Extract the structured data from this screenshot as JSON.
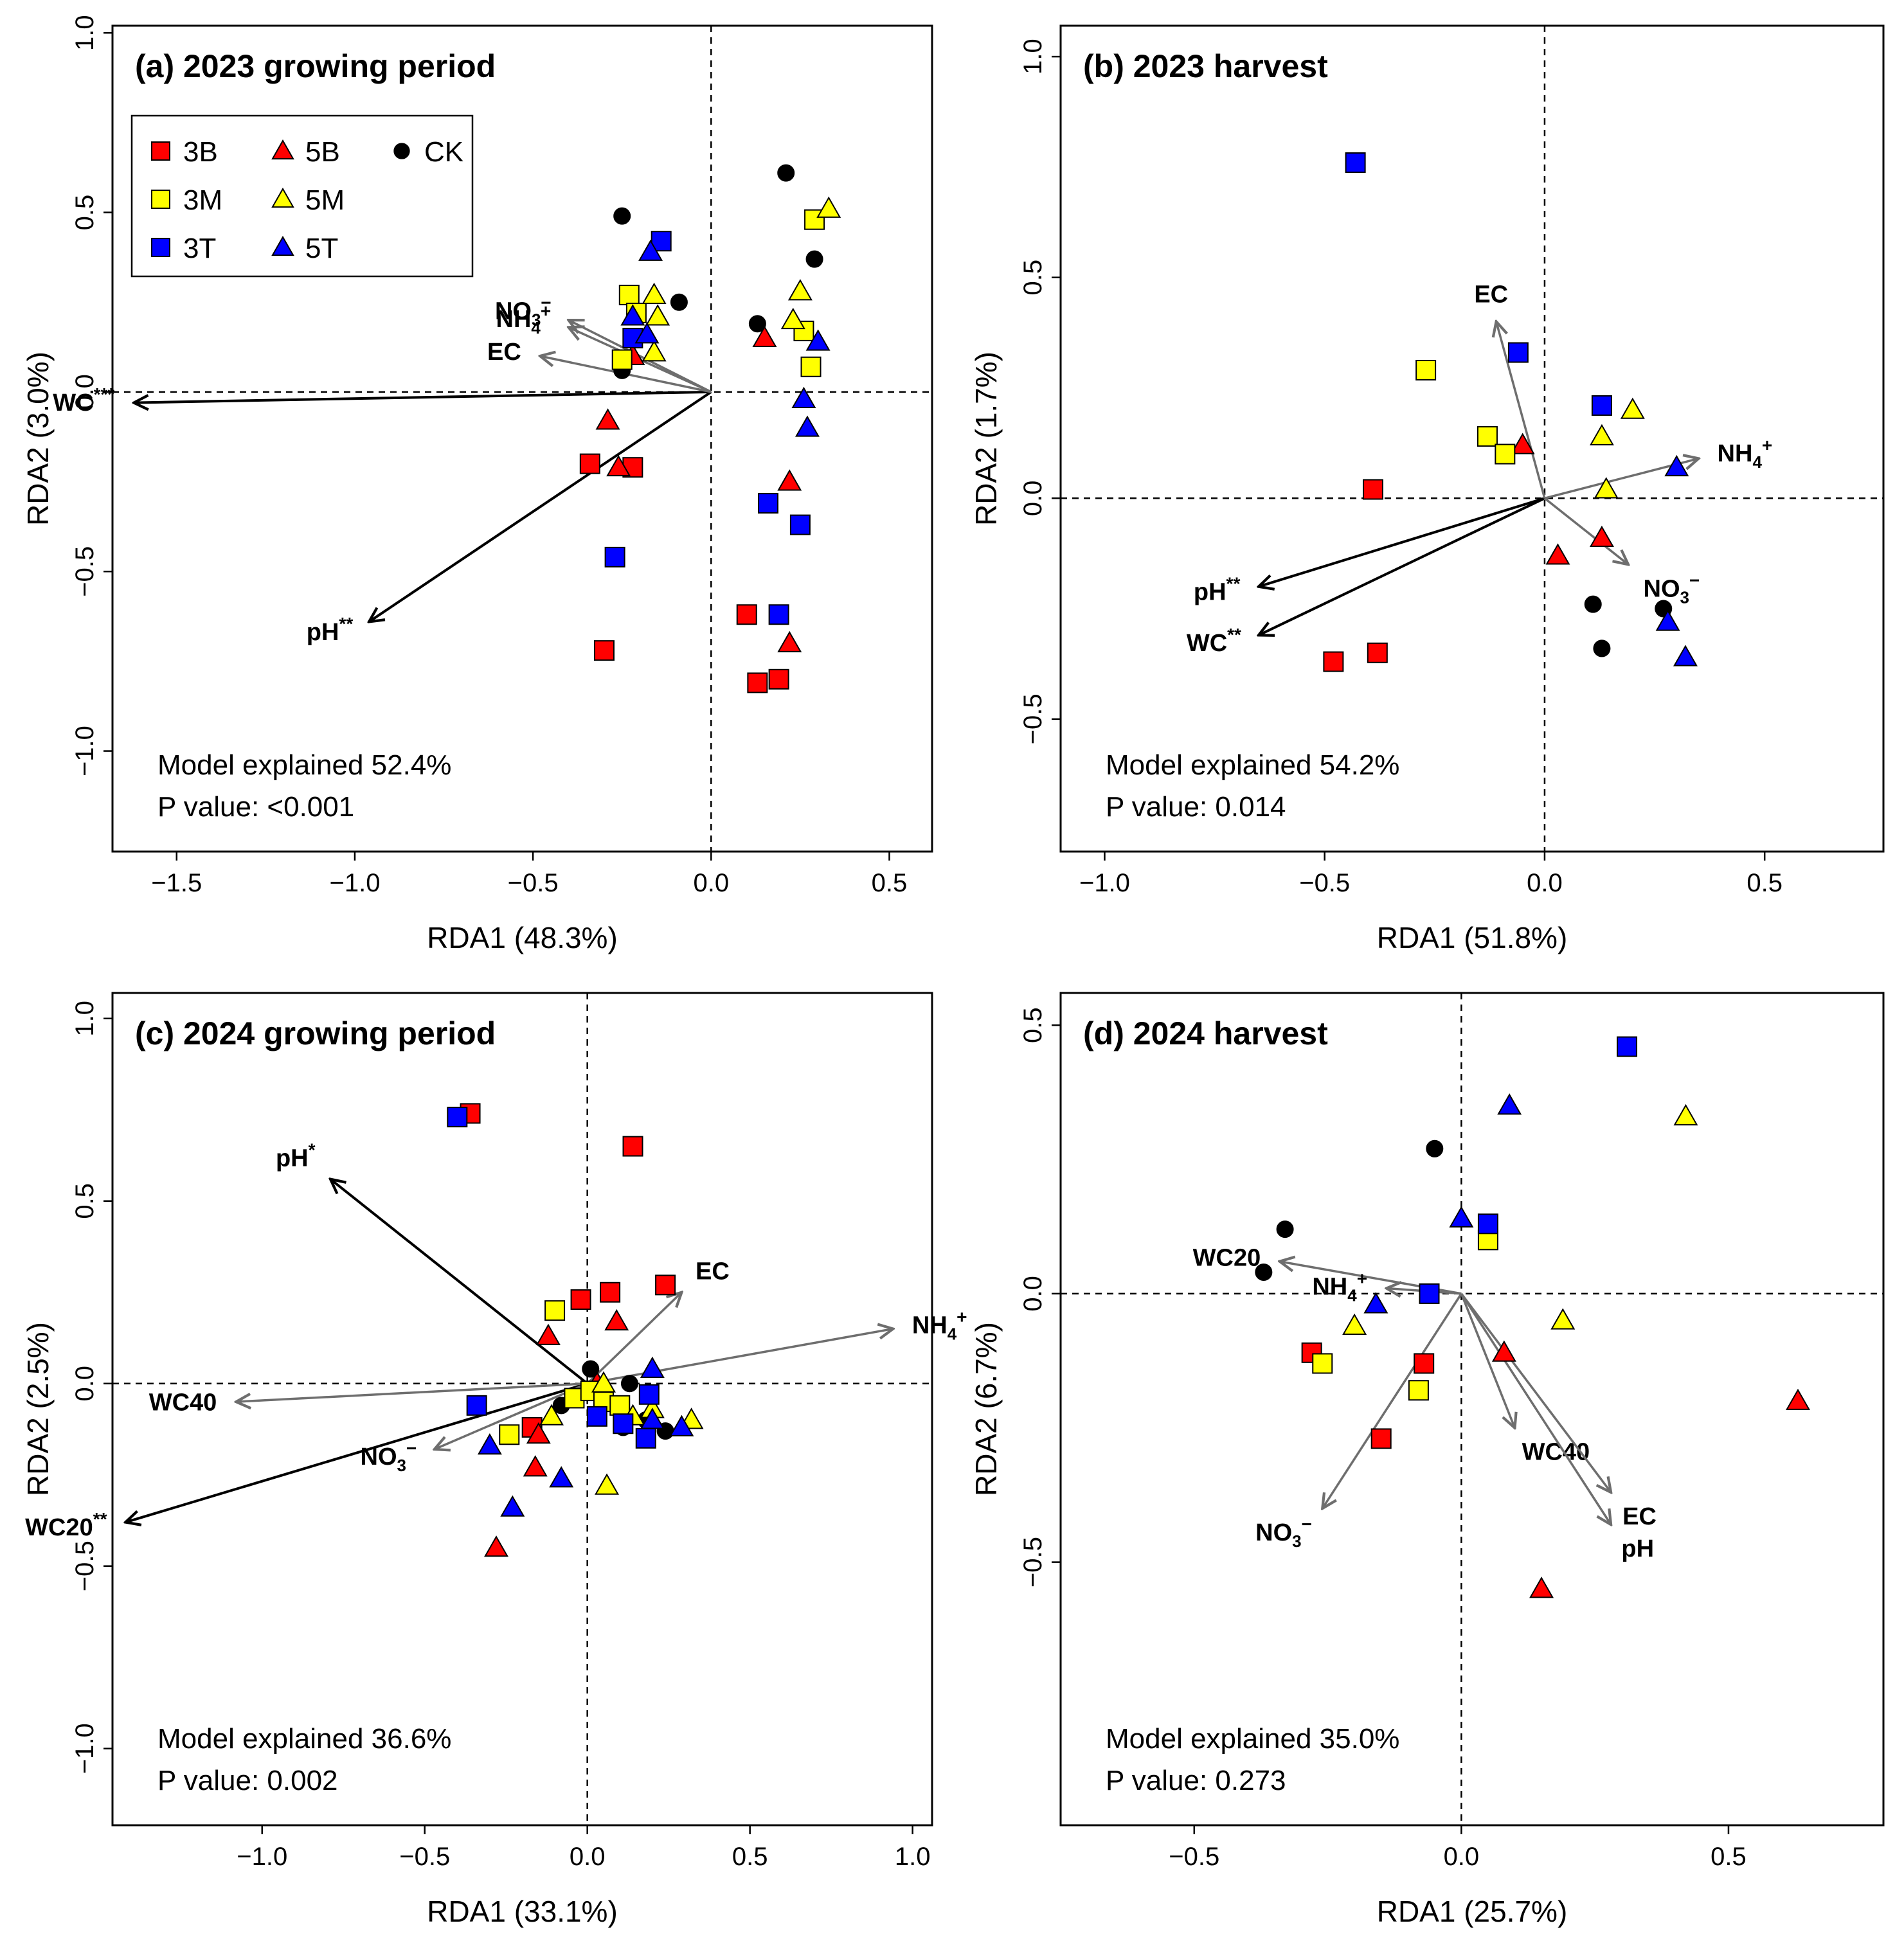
{
  "legend_labels": [
    "3B",
    "5B",
    "CK",
    "3M",
    "5M",
    "3T",
    "5T"
  ],
  "colors": {
    "B": "#ff0000",
    "M": "#ffff00",
    "T": "#0000ff",
    "CK": "#000000",
    "env": "#6e6e6e",
    "sig": "#000000"
  },
  "chart_data": [
    {
      "type": "scatter",
      "title": "(a) 2023 growing period",
      "xlabel": "RDA1 (48.3%)",
      "ylabel": "RDA2 (3.0%)",
      "xlim": [
        -1.68,
        0.62
      ],
      "ylim": [
        -1.28,
        1.02
      ],
      "xticks": [
        -1.5,
        -1.0,
        -0.5,
        0.0,
        0.5
      ],
      "yticks": [
        -1.0,
        -0.5,
        0.0,
        0.5,
        1.0
      ],
      "model_text": "Model explained 52.4%",
      "p_text": "P value: <0.001",
      "legend": "top-left",
      "vectors": [
        {
          "name": "WC",
          "sup": "***",
          "x": -1.62,
          "y": -0.03,
          "sig": true
        },
        {
          "name": "pH",
          "sup": "**",
          "x": -0.96,
          "y": -0.64,
          "sig": true
        },
        {
          "name": "NO3",
          "sup": "−",
          "x": -0.4,
          "y": 0.2,
          "sig": false
        },
        {
          "name": "NH4",
          "sup": "+",
          "x": -0.4,
          "y": 0.18,
          "sig": false
        },
        {
          "name": "EC",
          "sup": "",
          "x": -0.48,
          "y": 0.1,
          "sig": false
        }
      ],
      "series": [
        {
          "group": "3B",
          "points": [
            [
              -0.34,
              -0.2
            ],
            [
              -0.22,
              -0.21
            ],
            [
              -0.3,
              -0.72
            ],
            [
              0.1,
              -0.62
            ],
            [
              0.13,
              -0.81
            ],
            [
              0.19,
              -0.8
            ]
          ]
        },
        {
          "group": "5B",
          "points": [
            [
              -0.29,
              -0.08
            ],
            [
              -0.26,
              -0.21
            ],
            [
              0.15,
              0.15
            ],
            [
              0.22,
              -0.25
            ],
            [
              0.22,
              -0.7
            ],
            [
              -0.22,
              0.1
            ]
          ]
        },
        {
          "group": "CK",
          "points": [
            [
              -0.25,
              0.49
            ],
            [
              -0.09,
              0.25
            ],
            [
              0.21,
              0.61
            ],
            [
              0.29,
              0.37
            ],
            [
              0.13,
              0.19
            ],
            [
              -0.25,
              0.06
            ]
          ]
        },
        {
          "group": "3M",
          "points": [
            [
              -0.23,
              0.27
            ],
            [
              -0.21,
              0.22
            ],
            [
              -0.25,
              0.09
            ],
            [
              0.29,
              0.48
            ],
            [
              0.26,
              0.17
            ],
            [
              0.28,
              0.07
            ]
          ]
        },
        {
          "group": "5M",
          "points": [
            [
              -0.16,
              0.27
            ],
            [
              -0.15,
              0.21
            ],
            [
              -0.16,
              0.11
            ],
            [
              0.33,
              0.51
            ],
            [
              0.25,
              0.28
            ],
            [
              0.23,
              0.2
            ]
          ]
        },
        {
          "group": "3T",
          "points": [
            [
              -0.14,
              0.42
            ],
            [
              -0.22,
              0.15
            ],
            [
              -0.27,
              -0.46
            ],
            [
              0.16,
              -0.31
            ],
            [
              0.25,
              -0.37
            ],
            [
              0.19,
              -0.62
            ]
          ]
        },
        {
          "group": "5T",
          "points": [
            [
              -0.17,
              0.39
            ],
            [
              -0.22,
              0.21
            ],
            [
              -0.18,
              0.16
            ],
            [
              0.3,
              0.14
            ],
            [
              0.26,
              -0.02
            ],
            [
              0.27,
              -0.1
            ]
          ]
        }
      ]
    },
    {
      "type": "scatter",
      "title": "(b) 2023 harvest",
      "xlabel": "RDA1 (51.8%)",
      "ylabel": "RDA2 (1.7%)",
      "xlim": [
        -1.1,
        0.77
      ],
      "ylim": [
        -0.8,
        1.07
      ],
      "xticks": [
        -1.0,
        -0.5,
        0.0,
        0.5
      ],
      "yticks": [
        -0.5,
        0.0,
        0.5,
        1.0
      ],
      "model_text": "Model explained 54.2%",
      "p_text": "P value: 0.014",
      "legend": "none",
      "vectors": [
        {
          "name": "pH",
          "sup": "**",
          "x": -0.65,
          "y": -0.2,
          "sig": true
        },
        {
          "name": "WC",
          "sup": "**",
          "x": -0.65,
          "y": -0.31,
          "sig": true
        },
        {
          "name": "EC",
          "sup": "",
          "x": -0.11,
          "y": 0.4,
          "sig": false
        },
        {
          "name": "NH4",
          "sup": "+",
          "x": 0.35,
          "y": 0.09,
          "sig": false
        },
        {
          "name": "NO3",
          "sup": "−",
          "x": 0.19,
          "y": -0.15,
          "sig": false
        }
      ],
      "series": [
        {
          "group": "3B",
          "points": [
            [
              -0.39,
              0.02
            ],
            [
              -0.48,
              -0.37
            ],
            [
              -0.38,
              -0.35
            ]
          ]
        },
        {
          "group": "5B",
          "points": [
            [
              -0.05,
              0.12
            ],
            [
              0.13,
              -0.09
            ],
            [
              0.03,
              -0.13
            ]
          ]
        },
        {
          "group": "CK",
          "points": [
            [
              0.11,
              -0.24
            ],
            [
              0.27,
              -0.25
            ],
            [
              0.13,
              -0.34
            ]
          ]
        },
        {
          "group": "3M",
          "points": [
            [
              -0.27,
              0.29
            ],
            [
              -0.13,
              0.14
            ],
            [
              -0.09,
              0.1
            ]
          ]
        },
        {
          "group": "5M",
          "points": [
            [
              0.2,
              0.2
            ],
            [
              0.13,
              0.14
            ],
            [
              0.14,
              0.02
            ]
          ]
        },
        {
          "group": "3T",
          "points": [
            [
              -0.43,
              0.76
            ],
            [
              -0.06,
              0.33
            ],
            [
              0.13,
              0.21
            ]
          ]
        },
        {
          "group": "5T",
          "points": [
            [
              0.3,
              0.07
            ],
            [
              0.28,
              -0.28
            ],
            [
              0.32,
              -0.36
            ]
          ]
        }
      ]
    },
    {
      "type": "scatter",
      "title": "(c) 2024 growing period",
      "xlabel": "RDA1 (33.1%)",
      "ylabel": "RDA2 (2.5%)",
      "xlim": [
        -1.46,
        1.06
      ],
      "ylim": [
        -1.21,
        1.07
      ],
      "xticks": [
        -1.0,
        -0.5,
        0.0,
        0.5,
        1.0
      ],
      "yticks": [
        -1.0,
        -0.5,
        0.0,
        0.5,
        1.0
      ],
      "model_text": "Model explained 36.6%",
      "p_text": "P value: 0.002",
      "legend": "none",
      "vectors": [
        {
          "name": "pH",
          "sup": "*",
          "x": -0.79,
          "y": 0.56,
          "sig": true
        },
        {
          "name": "WC20",
          "sup": "**",
          "x": -1.42,
          "y": -0.38,
          "sig": true
        },
        {
          "name": "EC",
          "sup": "",
          "x": 0.29,
          "y": 0.25,
          "sig": false
        },
        {
          "name": "NH4",
          "sup": "+",
          "x": 0.94,
          "y": 0.15,
          "sig": false
        },
        {
          "name": "WC40",
          "sup": "",
          "x": -1.08,
          "y": -0.05,
          "sig": false
        },
        {
          "name": "NO3",
          "sup": "−",
          "x": -0.47,
          "y": -0.18,
          "sig": false
        }
      ],
      "series": [
        {
          "group": "3B",
          "points": [
            [
              -0.36,
              0.74
            ],
            [
              0.14,
              0.65
            ],
            [
              -0.02,
              0.23
            ],
            [
              0.07,
              0.25
            ],
            [
              0.24,
              0.27
            ],
            [
              -0.17,
              -0.12
            ]
          ]
        },
        {
          "group": "5B",
          "points": [
            [
              -0.12,
              0.13
            ],
            [
              0.09,
              0.17
            ],
            [
              -0.15,
              -0.14
            ],
            [
              -0.16,
              -0.23
            ],
            [
              -0.28,
              -0.45
            ],
            [
              0.03,
              0.0
            ]
          ]
        },
        {
          "group": "CK",
          "points": [
            [
              0.01,
              0.04
            ],
            [
              -0.08,
              -0.06
            ],
            [
              0.11,
              -0.12
            ],
            [
              0.18,
              -0.1
            ],
            [
              0.24,
              -0.13
            ],
            [
              0.13,
              0.0
            ]
          ]
        },
        {
          "group": "3M",
          "points": [
            [
              -0.1,
              0.2
            ],
            [
              -0.24,
              -0.14
            ],
            [
              -0.04,
              -0.04
            ],
            [
              0.01,
              -0.02
            ],
            [
              0.05,
              -0.05
            ],
            [
              0.1,
              -0.06
            ]
          ]
        },
        {
          "group": "5M",
          "points": [
            [
              -0.11,
              -0.09
            ],
            [
              0.05,
              0.0
            ],
            [
              0.06,
              -0.28
            ],
            [
              0.14,
              -0.09
            ],
            [
              0.32,
              -0.1
            ],
            [
              0.2,
              -0.07
            ]
          ]
        },
        {
          "group": "3T",
          "points": [
            [
              -0.4,
              0.73
            ],
            [
              -0.34,
              -0.06
            ],
            [
              0.03,
              -0.09
            ],
            [
              0.11,
              -0.11
            ],
            [
              0.18,
              -0.15
            ],
            [
              0.19,
              -0.03
            ]
          ]
        },
        {
          "group": "5T",
          "points": [
            [
              -0.3,
              -0.17
            ],
            [
              -0.23,
              -0.34
            ],
            [
              -0.08,
              -0.26
            ],
            [
              0.2,
              0.04
            ],
            [
              0.29,
              -0.12
            ],
            [
              0.2,
              -0.1
            ]
          ]
        }
      ]
    },
    {
      "type": "scatter",
      "title": "(d) 2024 harvest",
      "xlabel": "RDA1 (25.7%)",
      "ylabel": "RDA2 (6.7%)",
      "xlim": [
        -0.75,
        0.79
      ],
      "ylim": [
        -0.99,
        0.56
      ],
      "xticks": [
        -0.5,
        0.0,
        0.5
      ],
      "yticks": [
        -0.5,
        0.0,
        0.5
      ],
      "model_text": "Model explained 35.0%",
      "p_text": "P value: 0.273",
      "legend": "none",
      "vectors": [
        {
          "name": "WC20",
          "sup": "",
          "x": -0.34,
          "y": 0.06,
          "sig": false
        },
        {
          "name": "NH4",
          "sup": "+",
          "x": -0.14,
          "y": 0.01,
          "sig": false
        },
        {
          "name": "NO3",
          "sup": "−",
          "x": -0.26,
          "y": -0.4,
          "sig": false
        },
        {
          "name": "WC40",
          "sup": "",
          "x": 0.1,
          "y": -0.25,
          "sig": false
        },
        {
          "name": "EC",
          "sup": "",
          "x": 0.28,
          "y": -0.37,
          "sig": false
        },
        {
          "name": "pH",
          "sup": "",
          "x": 0.28,
          "y": -0.43,
          "sig": false
        }
      ],
      "series": [
        {
          "group": "3B",
          "points": [
            [
              -0.28,
              -0.11
            ],
            [
              -0.07,
              -0.13
            ],
            [
              -0.15,
              -0.27
            ]
          ]
        },
        {
          "group": "5B",
          "points": [
            [
              0.08,
              -0.11
            ],
            [
              0.63,
              -0.2
            ],
            [
              0.15,
              -0.55
            ]
          ]
        },
        {
          "group": "CK",
          "points": [
            [
              -0.33,
              0.12
            ],
            [
              -0.37,
              0.04
            ],
            [
              -0.05,
              0.27
            ]
          ]
        },
        {
          "group": "3M",
          "points": [
            [
              -0.26,
              -0.13
            ],
            [
              -0.08,
              -0.18
            ],
            [
              0.05,
              0.1
            ]
          ]
        },
        {
          "group": "5M",
          "points": [
            [
              -0.2,
              -0.06
            ],
            [
              0.19,
              -0.05
            ],
            [
              0.42,
              0.33
            ]
          ]
        },
        {
          "group": "3T",
          "points": [
            [
              0.31,
              0.46
            ],
            [
              0.05,
              0.13
            ],
            [
              -0.06,
              0.0
            ]
          ]
        },
        {
          "group": "5T",
          "points": [
            [
              0.09,
              0.35
            ],
            [
              0.0,
              0.14
            ],
            [
              -0.16,
              -0.02
            ]
          ]
        }
      ]
    }
  ]
}
